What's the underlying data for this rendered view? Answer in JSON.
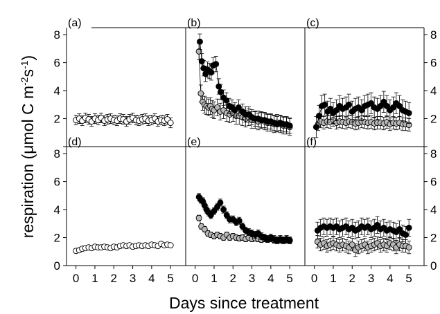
{
  "chart_data": {
    "type": "scatter",
    "xlabel": "Days since treatment",
    "ylabel": "respiration (μmol C m⁻²s⁻¹)",
    "ylabel_parts": {
      "main": "respiration (",
      "mu": "μ",
      "unit": "mol C m",
      "sup1": "-2",
      "mid": "s",
      "sup2": "-1",
      "close": ")"
    },
    "xlim": [
      -0.5,
      5.8
    ],
    "ylim": [
      0,
      8.5
    ],
    "xticks": [
      0,
      1,
      2,
      3,
      4,
      5
    ],
    "yticks": [
      0,
      2,
      4,
      6,
      8
    ],
    "xtick_labels": [
      "0",
      "1",
      "2",
      "3",
      "4",
      "5"
    ],
    "ytick_labels": [
      "0",
      "2",
      "4",
      "6",
      "8"
    ],
    "left_axis_ticks": [
      "2",
      "4",
      "6",
      "8"
    ],
    "left_axis_zero": "0",
    "right_axis_ticks": [
      "2",
      "4",
      "6",
      "8"
    ],
    "right_axis_zero": "0",
    "series_colors": {
      "control": "#ffffff",
      "grey": "#b8b8b8",
      "black": "#000000"
    },
    "panels": [
      {
        "label": "(a)",
        "series": [
          {
            "color": "#ffffff",
            "err": 0.35,
            "x": [
              0,
              0.17,
              0.33,
              0.5,
              0.67,
              0.83,
              1,
              1.17,
              1.33,
              1.5,
              1.67,
              1.83,
              2,
              2.17,
              2.33,
              2.5,
              2.67,
              2.83,
              3,
              3.17,
              3.33,
              3.5,
              3.67,
              3.83,
              4,
              4.17,
              4.33,
              4.5,
              4.67,
              4.83,
              5
            ],
            "y": [
              1.9,
              2.0,
              1.85,
              2.05,
              1.95,
              1.8,
              2.0,
              1.9,
              2.05,
              1.85,
              1.95,
              2.0,
              1.9,
              1.85,
              2.0,
              1.95,
              1.8,
              1.95,
              2.05,
              1.9,
              1.85,
              1.95,
              2.0,
              1.85,
              1.9,
              2.0,
              1.8,
              1.9,
              1.85,
              1.95,
              1.7
            ]
          }
        ]
      },
      {
        "label": "(b)",
        "series": [
          {
            "color": "#b8b8b8",
            "err": 0.6,
            "x": [
              0.2,
              0.3,
              0.4,
              0.5,
              0.6,
              0.7,
              0.8,
              0.9,
              1,
              1.17,
              1.33,
              1.5,
              1.67,
              1.83,
              2,
              2.17,
              2.33,
              2.5,
              2.67,
              2.83,
              3,
              3.17,
              3.33,
              3.5,
              3.67,
              3.83,
              4,
              4.17,
              4.33,
              4.5,
              4.67,
              4.83,
              5
            ],
            "y": [
              6.8,
              3.8,
              3.2,
              3.0,
              2.9,
              2.8,
              2.9,
              2.7,
              2.6,
              2.8,
              2.5,
              2.6,
              2.4,
              2.3,
              2.4,
              2.2,
              2.2,
              2.1,
              2.0,
              2.1,
              1.9,
              1.9,
              1.8,
              1.9,
              1.8,
              1.7,
              1.7,
              1.6,
              1.7,
              1.6,
              1.5,
              1.5,
              1.4
            ]
          },
          {
            "color": "#000000",
            "err": 0.55,
            "x": [
              0.25,
              0.35,
              0.45,
              0.55,
              0.65,
              0.75,
              0.85,
              0.95,
              1.1,
              1.25,
              1.35,
              1.5,
              1.65,
              1.8,
              1.95,
              2.1,
              2.3,
              2.5,
              2.67,
              2.83,
              3,
              3.17,
              3.33,
              3.5,
              3.67,
              3.83,
              4,
              4.17,
              4.33,
              4.5,
              4.67,
              4.83,
              5
            ],
            "y": [
              7.5,
              6.1,
              5.6,
              5.2,
              5.5,
              5.4,
              5.3,
              5.8,
              5.9,
              4.3,
              3.9,
              3.5,
              3.3,
              2.9,
              2.8,
              2.6,
              2.8,
              2.5,
              2.3,
              2.3,
              2.1,
              2.0,
              2.0,
              1.9,
              1.9,
              1.8,
              1.8,
              1.7,
              1.6,
              1.7,
              1.6,
              1.6,
              1.5
            ]
          }
        ]
      },
      {
        "label": "(c)",
        "series": [
          {
            "color": "#b8b8b8",
            "err": 0.45,
            "x": [
              0.2,
              0.33,
              0.5,
              0.67,
              0.83,
              1,
              1.17,
              1.33,
              1.5,
              1.67,
              1.83,
              2,
              2.17,
              2.33,
              2.5,
              2.67,
              2.83,
              3,
              3.17,
              3.33,
              3.5,
              3.67,
              3.83,
              4,
              4.17,
              4.33,
              4.5,
              4.67,
              4.83,
              5
            ],
            "y": [
              1.6,
              1.8,
              1.7,
              1.8,
              1.75,
              1.9,
              1.7,
              1.8,
              1.75,
              1.7,
              1.8,
              1.75,
              1.65,
              1.7,
              1.8,
              1.75,
              1.7,
              1.75,
              1.65,
              1.7,
              1.7,
              1.65,
              1.75,
              1.6,
              1.7,
              1.65,
              1.7,
              1.6,
              1.6,
              1.55
            ]
          },
          {
            "color": "#000000",
            "err": 0.75,
            "x": [
              0.1,
              0.25,
              0.4,
              0.55,
              0.7,
              0.85,
              1,
              1.17,
              1.33,
              1.5,
              1.67,
              1.83,
              2,
              2.17,
              2.33,
              2.5,
              2.67,
              2.83,
              3,
              3.17,
              3.33,
              3.5,
              3.67,
              3.83,
              4,
              4.17,
              4.33,
              4.5,
              4.67,
              4.83,
              5
            ],
            "y": [
              1.4,
              2.2,
              2.9,
              3.0,
              2.5,
              2.7,
              2.4,
              2.6,
              2.9,
              2.7,
              2.8,
              3.0,
              2.5,
              2.7,
              2.8,
              2.6,
              2.9,
              3.0,
              3.1,
              2.8,
              2.7,
              2.9,
              3.2,
              2.9,
              2.6,
              2.8,
              3.1,
              2.9,
              2.6,
              2.5,
              2.4
            ]
          }
        ]
      },
      {
        "label": "(d)",
        "series": [
          {
            "color": "#ffffff",
            "err": 0.15,
            "x": [
              0,
              0.17,
              0.33,
              0.5,
              0.67,
              0.83,
              1,
              1.17,
              1.33,
              1.5,
              1.67,
              1.83,
              2,
              2.17,
              2.33,
              2.5,
              2.67,
              2.83,
              3,
              3.17,
              3.33,
              3.5,
              3.67,
              3.83,
              4,
              4.17,
              4.33,
              4.5,
              4.67,
              4.83,
              5
            ],
            "y": [
              1.05,
              1.1,
              1.2,
              1.25,
              1.3,
              1.25,
              1.35,
              1.3,
              1.3,
              1.35,
              1.3,
              1.25,
              1.35,
              1.3,
              1.4,
              1.45,
              1.4,
              1.45,
              1.35,
              1.4,
              1.45,
              1.4,
              1.45,
              1.4,
              1.5,
              1.45,
              1.4,
              1.55,
              1.45,
              1.5,
              1.45
            ]
          }
        ]
      },
      {
        "label": "(e)",
        "series": [
          {
            "color": "#b8b8b8",
            "err": 0.2,
            "x": [
              0.2,
              0.33,
              0.5,
              0.67,
              0.83,
              1,
              1.17,
              1.33,
              1.5,
              1.67,
              1.83,
              2,
              2.17,
              2.33,
              2.5,
              2.67,
              2.83,
              3,
              3.17,
              3.33,
              3.5,
              3.67,
              3.83,
              4,
              4.17,
              4.33,
              4.5,
              4.67,
              4.83,
              5
            ],
            "y": [
              3.4,
              2.8,
              2.6,
              2.3,
              2.2,
              2.1,
              2.2,
              2.1,
              2.0,
              2.2,
              2.0,
              2.1,
              2.0,
              1.95,
              2.0,
              1.9,
              2.0,
              1.9,
              1.95,
              1.9,
              1.85,
              1.9,
              1.85,
              1.9,
              1.8,
              1.85,
              1.8,
              1.85,
              1.8,
              1.8
            ]
          },
          {
            "color": "#000000",
            "err": 0.25,
            "x": [
              0.2,
              0.3,
              0.4,
              0.5,
              0.6,
              0.7,
              0.83,
              1,
              1.17,
              1.33,
              1.5,
              1.67,
              1.83,
              2,
              2.17,
              2.33,
              2.5,
              2.67,
              2.83,
              3,
              3.17,
              3.33,
              3.5,
              3.67,
              3.83,
              4,
              4.17,
              4.33,
              4.5,
              4.67,
              4.83,
              5
            ],
            "y": [
              4.9,
              4.7,
              4.6,
              4.3,
              4.0,
              3.8,
              3.6,
              3.9,
              4.2,
              4.5,
              4.0,
              3.6,
              3.3,
              3.3,
              3.1,
              3.2,
              2.8,
              2.5,
              2.4,
              2.3,
              2.2,
              2.3,
              2.1,
              2.0,
              1.9,
              2.0,
              1.9,
              1.8,
              1.9,
              1.8,
              1.9,
              1.8
            ]
          }
        ]
      },
      {
        "label": "(f)",
        "series": [
          {
            "color": "#b8b8b8",
            "err": 0.45,
            "x": [
              0.17,
              0.33,
              0.5,
              0.67,
              0.83,
              1,
              1.17,
              1.33,
              1.5,
              1.67,
              1.83,
              2,
              2.17,
              2.33,
              2.5,
              2.67,
              2.83,
              3,
              3.17,
              3.33,
              3.5,
              3.67,
              3.83,
              4,
              4.17,
              4.33,
              4.5,
              4.67,
              4.83,
              5
            ],
            "y": [
              1.7,
              1.5,
              1.6,
              1.4,
              1.5,
              1.6,
              1.5,
              1.4,
              1.5,
              1.4,
              1.3,
              1.5,
              1.1,
              1.3,
              1.4,
              1.5,
              1.3,
              1.4,
              1.5,
              1.6,
              1.4,
              1.5,
              1.4,
              1.6,
              1.5,
              1.3,
              1.5,
              1.4,
              1.4,
              1.3
            ]
          },
          {
            "color": "#000000",
            "err": 0.6,
            "x": [
              0.17,
              0.33,
              0.5,
              0.67,
              0.83,
              1,
              1.17,
              1.33,
              1.5,
              1.67,
              1.83,
              2,
              2.17,
              2.33,
              2.5,
              2.67,
              2.83,
              3,
              3.17,
              3.33,
              3.5,
              3.67,
              3.83,
              4,
              4.17,
              4.33,
              4.5,
              4.67,
              4.83,
              5
            ],
            "y": [
              2.5,
              2.7,
              2.8,
              2.7,
              2.8,
              2.7,
              2.8,
              2.6,
              2.7,
              2.8,
              2.6,
              2.7,
              2.5,
              2.6,
              2.8,
              2.7,
              2.8,
              2.6,
              2.7,
              2.9,
              2.6,
              2.7,
              2.5,
              2.6,
              2.5,
              2.4,
              2.6,
              2.3,
              2.2,
              2.7
            ]
          }
        ]
      }
    ]
  }
}
